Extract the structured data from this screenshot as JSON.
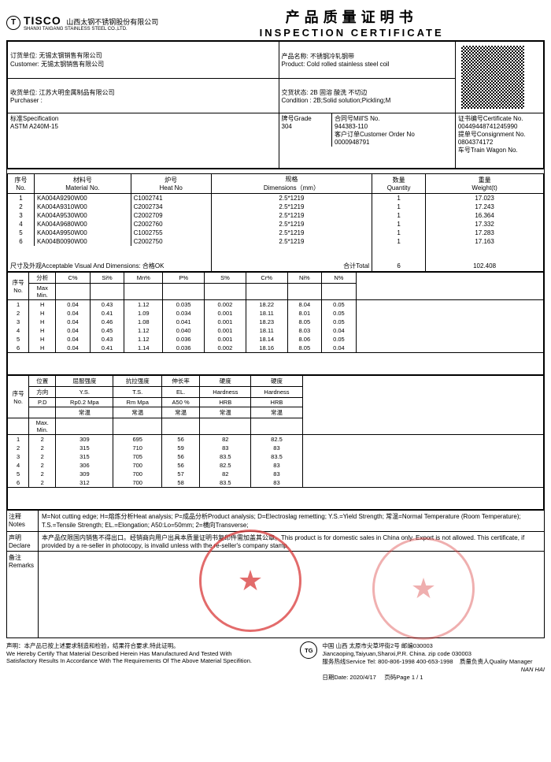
{
  "header": {
    "logo_letter": "T",
    "tisco": "TISCO",
    "company_cn": "山西太钢不锈钢股份有限公司",
    "company_en": "SHANXI TAIGANG STAINLESS STEEL CO.,LTD.",
    "title_cn": "产品质量证明书",
    "title_en": "INSPECTION CERTIFICATE"
  },
  "info": {
    "customer_label": "订货单位: 无锡太钢销售有限公司",
    "customer_en": "Customer:   无锡太钢销售有限公司",
    "purchaser_label": "收货单位: 江苏大明金属制品有限公司",
    "purchaser_en": "Purchaser :",
    "product_label": "产品名称:  不锈钢冷轧钢带",
    "product_en": "Product:     Cold rolled stainless steel coil",
    "condition_label": "交货状态:  2B 固溶 酸洗 不切边",
    "condition_en": "Condition :   2B;Solid solution;Pickling;M",
    "spec_label": "标准Specification",
    "spec_value": "ASTM A240M-15",
    "grade_label": "牌号Grade",
    "grade_value": "304",
    "mills_label": "合同号Mill'S No.",
    "mills_value": "944383-110",
    "custorder_label": "客户订单Customer Order No",
    "custorder_value": "0000948791",
    "cert_label": "证书编号Certificate No.",
    "cert_value": "00449448741245990",
    "consign_label": "提单号Consignment No.",
    "consign_value": "0804374172",
    "wagon_label": "车号Train Wagon No."
  },
  "materials": {
    "h_no": "序号",
    "h_no_en": "No.",
    "h_mat": "材料号",
    "h_mat_en": "Material No.",
    "h_heat": "炉号",
    "h_heat_en": "Heat No",
    "h_dim": "规格",
    "h_dim_en": "Dimensions（mm）",
    "h_qty": "数量",
    "h_qty_en": "Quantity",
    "h_wt": "重量",
    "h_wt_en": "Weight(t)",
    "rows": [
      {
        "n": "1",
        "mat": "KA004A9290W00",
        "heat": "C1002741",
        "dim": "2.5*1219",
        "qty": "1",
        "wt": "17.023"
      },
      {
        "n": "2",
        "mat": "KA004A9310W00",
        "heat": "C2002734",
        "dim": "2.5*1219",
        "qty": "1",
        "wt": "17.243"
      },
      {
        "n": "3",
        "mat": "KA004A9530W00",
        "heat": "C2002709",
        "dim": "2.5*1219",
        "qty": "1",
        "wt": "16.364"
      },
      {
        "n": "4",
        "mat": "KA004A9680W00",
        "heat": "C2002760",
        "dim": "2.5*1219",
        "qty": "1",
        "wt": "17.332"
      },
      {
        "n": "5",
        "mat": "KA004A9950W00",
        "heat": "C1002755",
        "dim": "2.5*1219",
        "qty": "1",
        "wt": "17.283"
      },
      {
        "n": "6",
        "mat": "KA004B0090W00",
        "heat": "C2002750",
        "dim": "2.5*1219",
        "qty": "1",
        "wt": "17.163"
      }
    ],
    "accept_label": "尺寸及外观Acceptable Visual And Dimensions: 合格OK",
    "total_label": "合计Total",
    "total_qty": "6",
    "total_wt": "102.408"
  },
  "chem": {
    "h_no": "序号",
    "h_no_en": "No.",
    "h_type": "分析",
    "h_max": "Max",
    "h_min": "Min.",
    "cols": [
      "C%",
      "Si%",
      "Mn%",
      "P%",
      "S%",
      "Cr%",
      "Ni%",
      "N%"
    ],
    "rows": [
      {
        "n": "1",
        "t": "H",
        "v": [
          "0.04",
          "0.43",
          "1.12",
          "0.035",
          "0.002",
          "18.22",
          "8.04",
          "0.05"
        ]
      },
      {
        "n": "2",
        "t": "H",
        "v": [
          "0.04",
          "0.41",
          "1.09",
          "0.034",
          "0.001",
          "18.11",
          "8.01",
          "0.05"
        ]
      },
      {
        "n": "3",
        "t": "H",
        "v": [
          "0.04",
          "0.46",
          "1.08",
          "0.041",
          "0.001",
          "18.23",
          "8.05",
          "0.05"
        ]
      },
      {
        "n": "4",
        "t": "H",
        "v": [
          "0.04",
          "0.45",
          "1.12",
          "0.040",
          "0.001",
          "18.11",
          "8.03",
          "0.04"
        ]
      },
      {
        "n": "5",
        "t": "H",
        "v": [
          "0.04",
          "0.43",
          "1.12",
          "0.036",
          "0.001",
          "18.14",
          "8.06",
          "0.05"
        ]
      },
      {
        "n": "6",
        "t": "H",
        "v": [
          "0.04",
          "0.41",
          "1.14",
          "0.036",
          "0.002",
          "18.16",
          "8.05",
          "0.04"
        ]
      }
    ]
  },
  "mech": {
    "h_no": "序号",
    "h_no_en": "No.",
    "h_pos": "位置",
    "h_dir": "方向",
    "h_pd": "P.D",
    "h_ys_cn": "屈服强度",
    "h_ts_cn": "抗拉强度",
    "h_el_cn": "伸长率",
    "h_hard_cn": "硬度",
    "h_hard2_cn": "硬度",
    "h_ys": "Y.S.",
    "h_ts": "T.S.",
    "h_el": "EL.",
    "h_hard": "Hardness",
    "h_hard2": "Hardness",
    "h_ys_u": "Rp0.2 Mpa",
    "h_ts_u": "Rm Mpa",
    "h_el_u": "A50 %",
    "h_hard_u": "HRB",
    "h_hard2_u": "HRB",
    "h_temp": "常温",
    "h_max": "Max.",
    "h_min": "Min.",
    "rows": [
      {
        "n": "1",
        "d": "2",
        "v": [
          "309",
          "695",
          "56",
          "82",
          "82.5"
        ]
      },
      {
        "n": "2",
        "d": "2",
        "v": [
          "315",
          "710",
          "59",
          "83",
          "83"
        ]
      },
      {
        "n": "3",
        "d": "2",
        "v": [
          "315",
          "705",
          "56",
          "83.5",
          "83.5"
        ]
      },
      {
        "n": "4",
        "d": "2",
        "v": [
          "306",
          "700",
          "56",
          "82.5",
          "83"
        ]
      },
      {
        "n": "5",
        "d": "2",
        "v": [
          "309",
          "700",
          "57",
          "82",
          "83"
        ]
      },
      {
        "n": "6",
        "d": "2",
        "v": [
          "312",
          "700",
          "58",
          "83.5",
          "83"
        ]
      }
    ]
  },
  "notes": {
    "label_cn": "注释",
    "label_en": "Notes",
    "text": "M=Not cutting edge;  H=熔炼分析Heat analysis;  P=成品分析Product analysis;  D=Electroslag remetting;  Y.S.=Yield Strength;  常温=Normal Temperature (Room Temperature);  T.S.=Tensile Strength;  EL.=Elongation;  A50:Lo=50mm;  2=横向Transverse;"
  },
  "declare": {
    "label_cn": "声明",
    "label_en": "Declare",
    "text": "本产品仅限国内销售不得出口。经销商向用户出具本质量证明书复印件需加盖其公章。This product is for domestic sales in China only. Export is not allowed. This certificate, if provided by a re-seller in photocopy, is invalid unless with the re-seller's company stamp."
  },
  "remarks": {
    "label_cn": "备注",
    "label_en": "Remarks"
  },
  "footer": {
    "cert_cn": "声明：本产品已按上述要求制造和检验，结果符合要求,特此证明。",
    "cert_en1": "We Hereby Certify That Material Described Herein Has Manufactured And Tested With",
    "cert_en2": "Satisfactory Results In Accordance With The Requirements Of The Above Material Specifition.",
    "addr_cn": "中国 山西 太原市尖草坪街2号  邮编030003",
    "addr_en": "Jiancaoping,Taiyuan,Shanxi,P.R. China. zip code 030003",
    "tel": "服务热线Service Tel: 800-806-1998    400-653-1998",
    "date_label": "日期Date:",
    "date_value": "2020/4/17",
    "page_label": "页码Page",
    "page_value": "1 / 1",
    "quality": "质量负责人Quality Manager",
    "nanhai": "NAN HAI"
  },
  "colors": {
    "stamp": "#d93a3a",
    "border": "#000000",
    "bg": "#ffffff"
  }
}
